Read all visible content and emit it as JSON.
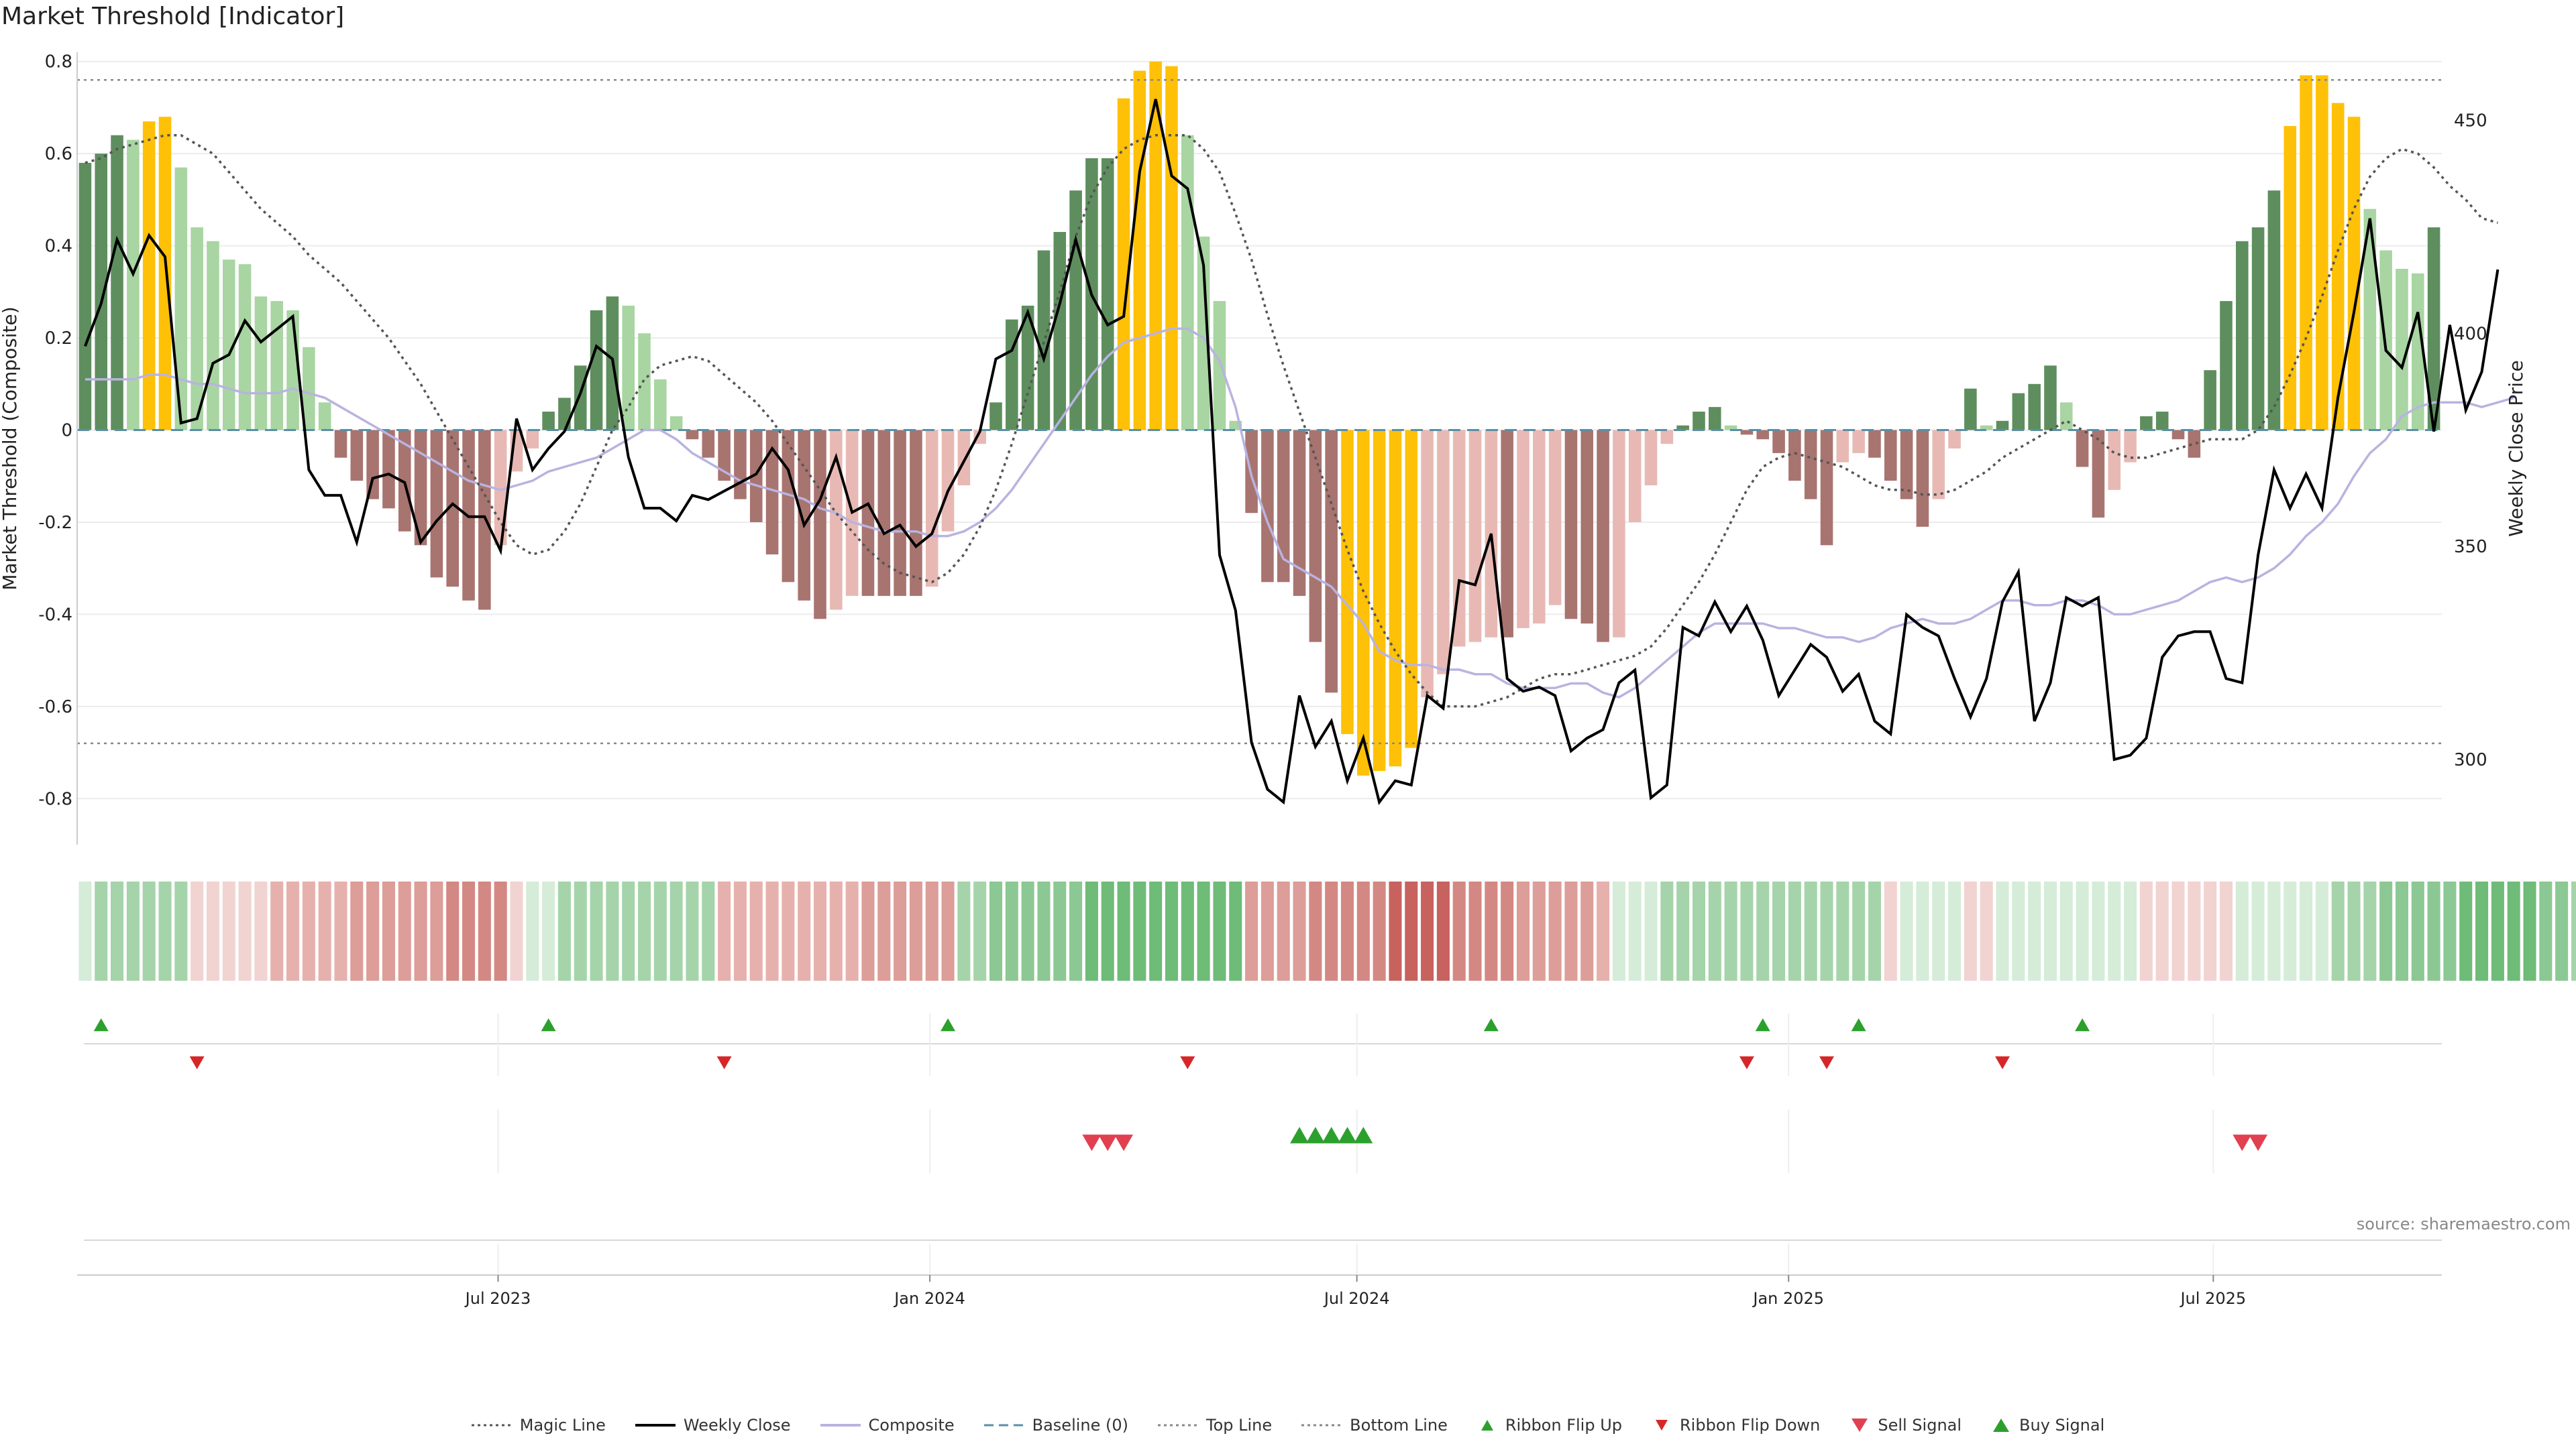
{
  "title": "Market Threshold [Indicator]",
  "source": "source: sharemaestro.com",
  "legend": [
    {
      "label": "Magic Line",
      "kind": "dotted",
      "color": "#555555"
    },
    {
      "label": "Weekly Close",
      "kind": "solid",
      "color": "#000000"
    },
    {
      "label": "Composite",
      "kind": "solid",
      "color": "#b9b3e0"
    },
    {
      "label": "Baseline (0)",
      "kind": "dashed",
      "color": "#5a8fa6"
    },
    {
      "label": "Top Line",
      "kind": "dotted",
      "color": "#888888"
    },
    {
      "label": "Bottom Line",
      "kind": "dotted",
      "color": "#888888"
    },
    {
      "label": "Ribbon Flip Up",
      "kind": "tri-up",
      "color": "#2ca02c"
    },
    {
      "label": "Ribbon Flip Down",
      "kind": "tri-down",
      "color": "#d62728"
    },
    {
      "label": "Sell Signal",
      "kind": "tri-down-big",
      "color": "#e04050"
    },
    {
      "label": "Buy Signal",
      "kind": "tri-up-big",
      "color": "#2ca02c"
    }
  ],
  "chart_data": {
    "type": "bar",
    "title": "Market Threshold [Indicator]",
    "ylabel": "Market Threshold (Composite)",
    "y2label": "Weekly Close Price",
    "ylim": [
      -0.9,
      0.82
    ],
    "y2lim": [
      280,
      466
    ],
    "yticks": [
      0.8,
      0.6,
      0.4,
      0.2,
      0,
      -0.2,
      -0.4,
      -0.6,
      -0.8
    ],
    "y2ticks": [
      450,
      400,
      350,
      300
    ],
    "x_start": "2023-01-06",
    "x_end": "2025-10-03",
    "date_ticks": [
      {
        "label": "Jul 2023",
        "date": "2023-07-01"
      },
      {
        "label": "Jan 2024",
        "date": "2024-01-01"
      },
      {
        "label": "Jul 2024",
        "date": "2024-07-01"
      },
      {
        "label": "Jan 2025",
        "date": "2025-01-01"
      },
      {
        "label": "Jul 2025",
        "date": "2025-07-01"
      }
    ],
    "top_line": 0.76,
    "bottom_line": -0.68,
    "grid": true,
    "composite_bars": [
      0.58,
      0.6,
      0.64,
      0.63,
      0.67,
      0.68,
      0.57,
      0.44,
      0.41,
      0.37,
      0.36,
      0.29,
      0.28,
      0.26,
      0.18,
      0.06,
      -0.06,
      -0.11,
      -0.15,
      -0.17,
      -0.22,
      -0.25,
      -0.32,
      -0.34,
      -0.37,
      -0.39,
      -0.25,
      -0.09,
      -0.04,
      0.04,
      0.07,
      0.14,
      0.26,
      0.29,
      0.27,
      0.21,
      0.11,
      0.03,
      -0.02,
      -0.06,
      -0.11,
      -0.15,
      -0.2,
      -0.27,
      -0.33,
      -0.37,
      -0.41,
      -0.39,
      -0.36,
      -0.36,
      -0.36,
      -0.36,
      -0.36,
      -0.34,
      -0.22,
      -0.12,
      -0.03,
      0.06,
      0.24,
      0.27,
      0.39,
      0.43,
      0.52,
      0.59,
      0.59,
      0.72,
      0.78,
      0.8,
      0.79,
      0.64,
      0.42,
      0.28,
      0.02,
      -0.18,
      -0.33,
      -0.33,
      -0.36,
      -0.46,
      -0.57,
      -0.66,
      -0.75,
      -0.74,
      -0.73,
      -0.69,
      -0.58,
      -0.53,
      -0.47,
      -0.46,
      -0.45,
      -0.45,
      -0.43,
      -0.42,
      -0.38,
      -0.41,
      -0.42,
      -0.46,
      -0.45,
      -0.2,
      -0.12,
      -0.03,
      0.01,
      0.04,
      0.05,
      0.01,
      -0.01,
      -0.02,
      -0.05,
      -0.11,
      -0.15,
      -0.25,
      -0.07,
      -0.05,
      -0.06,
      -0.11,
      -0.15,
      -0.21,
      -0.15,
      -0.04,
      0.09,
      0.01,
      0.02,
      0.08,
      0.1,
      0.14,
      0.06,
      -0.08,
      -0.19,
      -0.13,
      -0.07,
      0.03,
      0.04,
      -0.02,
      -0.06,
      0.13,
      0.28,
      0.41,
      0.44,
      0.52,
      0.66,
      0.77,
      0.77,
      0.71,
      0.68,
      0.48,
      0.39,
      0.35,
      0.34,
      0.44
    ],
    "series": [
      {
        "name": "Weekly Close",
        "axis": "right",
        "values": [
          397,
          407,
          422,
          414,
          423,
          418,
          379,
          380,
          393,
          395,
          403,
          398,
          401,
          404,
          368,
          362,
          362,
          351,
          366,
          367,
          365,
          351,
          356,
          360,
          357,
          357,
          349,
          380,
          368,
          373,
          377,
          386,
          397,
          394,
          371,
          359,
          359,
          356,
          362,
          361,
          363,
          365,
          367,
          373,
          368,
          355,
          361,
          371,
          358,
          360,
          353,
          355,
          350,
          353,
          363,
          370,
          377,
          394,
          396,
          405,
          394,
          407,
          422,
          409,
          402,
          404,
          438,
          455,
          437,
          434,
          416,
          348,
          335,
          304,
          293,
          290,
          315,
          303,
          309,
          295,
          305,
          290,
          295,
          294,
          315,
          312,
          342,
          341,
          353,
          319,
          316,
          317,
          315,
          302,
          305,
          307,
          318,
          321,
          291,
          294,
          331,
          329,
          337,
          330,
          336,
          328,
          315,
          321,
          327,
          324,
          316,
          320,
          309,
          306,
          334,
          331,
          329,
          319,
          310,
          319,
          337,
          344,
          309,
          318,
          338,
          336,
          338,
          300,
          301,
          305,
          324,
          329,
          330,
          330,
          319,
          318,
          348,
          368,
          359,
          367,
          359,
          385,
          405,
          427,
          396,
          392,
          405,
          377,
          402,
          382,
          391,
          415
        ]
      },
      {
        "name": "Composite",
        "values": [
          0.11,
          0.11,
          0.11,
          0.11,
          0.12,
          0.12,
          0.11,
          0.1,
          0.1,
          0.09,
          0.08,
          0.08,
          0.08,
          0.09,
          0.08,
          0.07,
          0.05,
          0.03,
          0.01,
          -0.01,
          -0.03,
          -0.05,
          -0.07,
          -0.09,
          -0.11,
          -0.12,
          -0.13,
          -0.12,
          -0.11,
          -0.09,
          -0.08,
          -0.07,
          -0.06,
          -0.04,
          -0.02,
          0.0,
          0.0,
          -0.02,
          -0.05,
          -0.07,
          -0.09,
          -0.11,
          -0.12,
          -0.13,
          -0.14,
          -0.15,
          -0.17,
          -0.18,
          -0.2,
          -0.21,
          -0.22,
          -0.22,
          -0.22,
          -0.23,
          -0.23,
          -0.22,
          -0.2,
          -0.17,
          -0.13,
          -0.08,
          -0.03,
          0.02,
          0.07,
          0.12,
          0.16,
          0.19,
          0.2,
          0.21,
          0.22,
          0.22,
          0.2,
          0.15,
          0.05,
          -0.1,
          -0.2,
          -0.28,
          -0.3,
          -0.32,
          -0.34,
          -0.38,
          -0.42,
          -0.48,
          -0.5,
          -0.51,
          -0.51,
          -0.52,
          -0.52,
          -0.53,
          -0.53,
          -0.55,
          -0.56,
          -0.56,
          -0.56,
          -0.55,
          -0.55,
          -0.57,
          -0.58,
          -0.56,
          -0.53,
          -0.5,
          -0.47,
          -0.44,
          -0.42,
          -0.42,
          -0.42,
          -0.42,
          -0.43,
          -0.43,
          -0.44,
          -0.45,
          -0.45,
          -0.46,
          -0.45,
          -0.43,
          -0.42,
          -0.41,
          -0.42,
          -0.42,
          -0.41,
          -0.39,
          -0.37,
          -0.37,
          -0.38,
          -0.38,
          -0.37,
          -0.37,
          -0.38,
          -0.4,
          -0.4,
          -0.39,
          -0.38,
          -0.37,
          -0.35,
          -0.33,
          -0.32,
          -0.33,
          -0.32,
          -0.3,
          -0.27,
          -0.23,
          -0.2,
          -0.16,
          -0.1,
          -0.05,
          -0.02,
          0.03,
          0.05,
          0.06,
          0.06,
          0.06,
          0.05,
          0.06,
          0.07
        ]
      },
      {
        "name": "Magic Line",
        "values": [
          0.58,
          0.59,
          0.61,
          0.62,
          0.63,
          0.64,
          0.64,
          0.62,
          0.6,
          0.56,
          0.52,
          0.48,
          0.45,
          0.42,
          0.38,
          0.35,
          0.32,
          0.28,
          0.24,
          0.2,
          0.15,
          0.1,
          0.04,
          -0.02,
          -0.08,
          -0.14,
          -0.2,
          -0.25,
          -0.27,
          -0.26,
          -0.22,
          -0.16,
          -0.08,
          0.0,
          0.05,
          0.11,
          0.14,
          0.15,
          0.16,
          0.15,
          0.12,
          0.09,
          0.06,
          0.02,
          -0.03,
          -0.08,
          -0.13,
          -0.18,
          -0.22,
          -0.26,
          -0.29,
          -0.31,
          -0.32,
          -0.33,
          -0.31,
          -0.27,
          -0.21,
          -0.13,
          -0.03,
          0.08,
          0.19,
          0.3,
          0.42,
          0.51,
          0.57,
          0.61,
          0.63,
          0.64,
          0.64,
          0.64,
          0.61,
          0.56,
          0.47,
          0.37,
          0.25,
          0.14,
          0.04,
          -0.06,
          -0.16,
          -0.26,
          -0.35,
          -0.42,
          -0.48,
          -0.53,
          -0.57,
          -0.6,
          -0.6,
          -0.6,
          -0.59,
          -0.58,
          -0.56,
          -0.54,
          -0.53,
          -0.53,
          -0.52,
          -0.51,
          -0.5,
          -0.49,
          -0.47,
          -0.43,
          -0.38,
          -0.33,
          -0.27,
          -0.2,
          -0.13,
          -0.08,
          -0.06,
          -0.05,
          -0.06,
          -0.07,
          -0.08,
          -0.1,
          -0.12,
          -0.13,
          -0.13,
          -0.14,
          -0.14,
          -0.13,
          -0.11,
          -0.09,
          -0.06,
          -0.04,
          -0.02,
          0.0,
          0.02,
          0.0,
          -0.02,
          -0.05,
          -0.06,
          -0.06,
          -0.05,
          -0.04,
          -0.03,
          -0.02,
          -0.02,
          -0.02,
          0.0,
          0.05,
          0.12,
          0.2,
          0.29,
          0.39,
          0.48,
          0.55,
          0.59,
          0.61,
          0.6,
          0.57,
          0.53,
          0.5,
          0.46,
          0.45
        ]
      }
    ],
    "ribbon": [
      1,
      2,
      2,
      2,
      2,
      2,
      2,
      -1,
      -1,
      -1,
      -1,
      -1,
      -2,
      -2,
      -2,
      -2,
      -2,
      -3,
      -3,
      -3,
      -3,
      -3,
      -3,
      -4,
      -4,
      -4,
      -4,
      -1,
      1,
      1,
      2,
      2,
      2,
      2,
      2,
      2,
      2,
      2,
      2,
      2,
      -2,
      -2,
      -2,
      -2,
      -2,
      -2,
      -2,
      -2,
      -2,
      -3,
      -3,
      -3,
      -3,
      -3,
      -3,
      2,
      2,
      3,
      3,
      3,
      3,
      3,
      3,
      4,
      4,
      4,
      4,
      4,
      4,
      4,
      4,
      4,
      4,
      -3,
      -3,
      -3,
      -3,
      -4,
      -4,
      -4,
      -4,
      -4,
      -5,
      -5,
      -5,
      -5,
      -4,
      -4,
      -4,
      -4,
      -3,
      -3,
      -3,
      -3,
      -3,
      -2,
      1,
      1,
      1,
      2,
      2,
      2,
      2,
      2,
      2,
      2,
      2,
      2,
      2,
      2,
      2,
      2,
      2,
      -1,
      1,
      1,
      1,
      1,
      -1,
      -1,
      1,
      1,
      1,
      1,
      1,
      1,
      1,
      1,
      1,
      -1,
      -1,
      -1,
      -1,
      -1,
      -1,
      1,
      1,
      1,
      1,
      1,
      1,
      2,
      2,
      2,
      3,
      3,
      3,
      3,
      3,
      4,
      4,
      4,
      4,
      4,
      3,
      3,
      2,
      2,
      1
    ],
    "ribbon_flip_up_weeks": [
      1,
      29,
      54,
      88,
      105,
      111,
      125
    ],
    "ribbon_flip_down_weeks": [
      7,
      40,
      69,
      104,
      109,
      120
    ],
    "sell_signal_weeks": [
      63,
      64,
      65,
      135,
      136
    ],
    "buy_signal_weeks": [
      76,
      77,
      78,
      79,
      80
    ]
  }
}
